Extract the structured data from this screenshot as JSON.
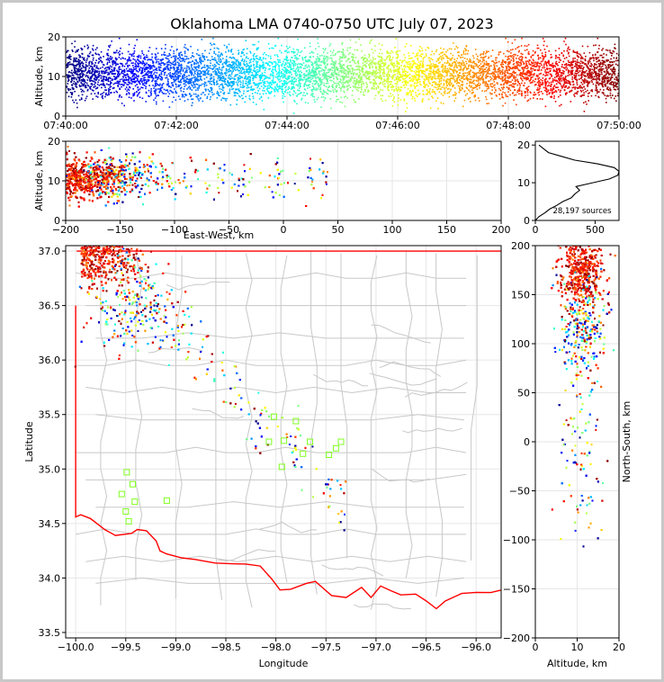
{
  "chart_data": {
    "type": "scatter",
    "title": "Oklahoma LMA 0740-0750 UTC July 07, 2023",
    "color_encoding": "time (jet colormap: dark blue = 07:40, dark red = 07:50)",
    "colormap": [
      "#00007f",
      "#0000ff",
      "#007fff",
      "#00ffff",
      "#7fff7f",
      "#ffff00",
      "#ff7f00",
      "#ff0000",
      "#7f0000"
    ],
    "panels": {
      "time_altitude": {
        "type": "scatter",
        "ylabel": "Altitude, km",
        "xlim": [
          "07:40:00",
          "07:50:00"
        ],
        "ylim": [
          0,
          20
        ],
        "x_ticks": [
          "07:40:00",
          "07:42:00",
          "07:44:00",
          "07:46:00",
          "07:48:00",
          "07:50:00"
        ],
        "y_ticks": [
          "0",
          "10",
          "20"
        ],
        "grid": true,
        "altitude_band_km": [
          3,
          18
        ]
      },
      "ew_altitude": {
        "type": "scatter",
        "xlabel": "East-West, km",
        "ylabel": "Altitude, km",
        "xlim": [
          -200,
          200
        ],
        "ylim": [
          0,
          20
        ],
        "x_ticks": [
          "−200",
          "−150",
          "−100",
          "−50",
          "0",
          "50",
          "100",
          "150",
          "200"
        ],
        "y_ticks": [
          "0",
          "10",
          "20"
        ],
        "grid": true
      },
      "histogram": {
        "type": "line",
        "xlim": [
          0,
          700
        ],
        "ylim": [
          0,
          21
        ],
        "x_ticks": [
          "0",
          "500"
        ],
        "y_ticks": [
          "0",
          "10",
          "20"
        ],
        "annotation": "28,197 sources",
        "profile": [
          [
            0,
            0
          ],
          [
            30,
            1
          ],
          [
            80,
            2
          ],
          [
            120,
            3
          ],
          [
            180,
            4
          ],
          [
            230,
            5
          ],
          [
            300,
            6
          ],
          [
            330,
            7
          ],
          [
            370,
            8
          ],
          [
            340,
            9
          ],
          [
            480,
            10
          ],
          [
            620,
            11
          ],
          [
            690,
            12
          ],
          [
            700,
            13
          ],
          [
            660,
            14
          ],
          [
            520,
            15
          ],
          [
            330,
            16
          ],
          [
            220,
            17
          ],
          [
            110,
            18
          ],
          [
            70,
            19
          ],
          [
            30,
            20
          ]
        ]
      },
      "plan_view": {
        "type": "scatter",
        "xlabel": "Longitude",
        "ylabel": "Latitude",
        "xlim": [
          -100.1,
          -95.75
        ],
        "ylim": [
          33.45,
          37.05
        ],
        "x_ticks": [
          "−100.0",
          "−99.5",
          "−99.0",
          "−98.5",
          "−98.0",
          "−97.5",
          "−97.0",
          "−96.5",
          "−96.0"
        ],
        "y_ticks": [
          "33.5",
          "34.0",
          "34.5",
          "35.0",
          "35.5",
          "36.0",
          "36.5",
          "37.0"
        ],
        "grid": true,
        "boundary_color": "#ff0000",
        "county_color": "#c8c8c8",
        "station_marker_color": "#80ff20",
        "stations": [
          [
            -98.02,
            35.48
          ],
          [
            -97.8,
            35.44
          ],
          [
            -98.07,
            35.25
          ],
          [
            -97.92,
            35.26
          ],
          [
            -97.73,
            35.14
          ],
          [
            -97.66,
            35.25
          ],
          [
            -97.47,
            35.13
          ],
          [
            -97.4,
            35.19
          ],
          [
            -97.35,
            35.25
          ],
          [
            -97.94,
            35.02
          ],
          [
            -99.49,
            34.97
          ],
          [
            -99.43,
            34.86
          ],
          [
            -99.54,
            34.77
          ],
          [
            -99.41,
            34.7
          ],
          [
            -99.09,
            34.71
          ],
          [
            -99.5,
            34.61
          ],
          [
            -99.47,
            34.52
          ]
        ]
      },
      "altitude_ns": {
        "type": "scatter",
        "xlabel": "Altitude, km",
        "ylabel": "North-South, km",
        "xlim": [
          0,
          20
        ],
        "ylim": [
          -200,
          200
        ],
        "x_ticks": [
          "0",
          "10",
          "20"
        ],
        "y_ticks": [
          "−200",
          "−150",
          "−100",
          "−50",
          "0",
          "50",
          "100",
          "150",
          "200"
        ],
        "grid": true
      }
    }
  }
}
